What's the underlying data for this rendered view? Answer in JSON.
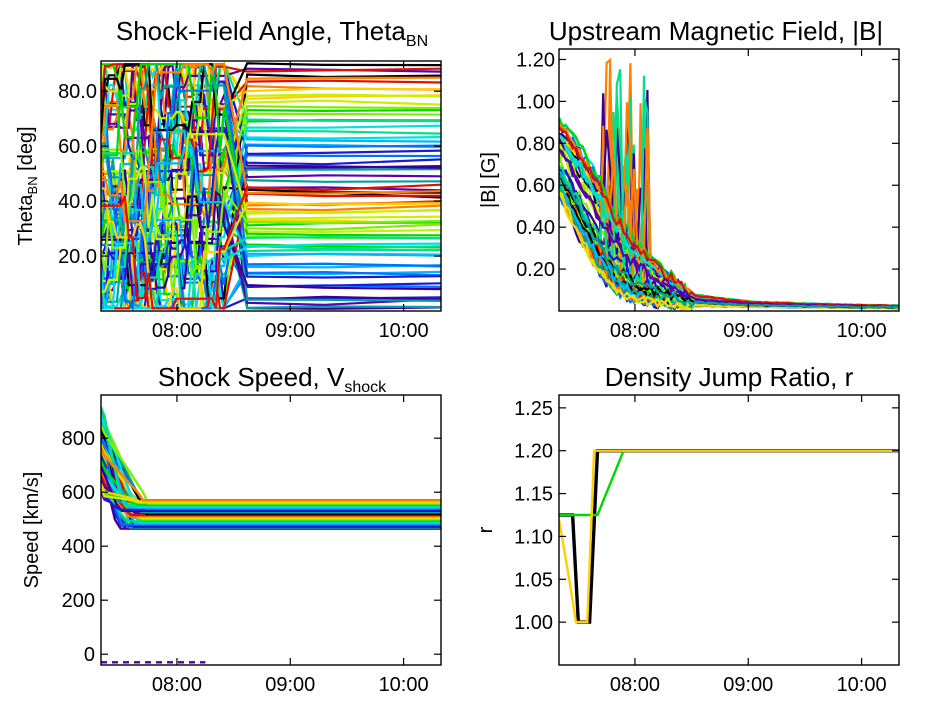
{
  "chart_data": [
    {
      "type": "line",
      "title_main": "Shock-Field Angle, Theta",
      "title_sub": "BN",
      "ylabel_main": "Theta",
      "ylabel_sub": "BN",
      "ylabel_rest": " [deg]",
      "xlim": [
        7.33,
        10.33
      ],
      "ylim": [
        0,
        91
      ],
      "xticks": [
        {
          "value": 8,
          "label": "08:00"
        },
        {
          "value": 9,
          "label": "09:00"
        },
        {
          "value": 10,
          "label": "10:00"
        }
      ],
      "yticks": [
        {
          "value": 20,
          "label": "20.0"
        },
        {
          "value": 40,
          "label": "40.0"
        },
        {
          "value": 60,
          "label": "60.0"
        },
        {
          "value": 80,
          "label": "80.0"
        }
      ],
      "description_of_traces": "ensemble of many colored field-line traces; noisy 0-90 deg before ~08:30, settling to nearly constant levels between ~1 and ~89 deg afterwards",
      "settled_levels_deg": [
        2,
        5,
        9,
        13,
        17,
        21,
        24,
        27,
        30,
        33,
        36,
        39,
        42,
        45,
        48,
        51,
        54,
        57,
        60,
        63,
        66,
        69,
        72,
        75,
        78,
        81,
        84,
        87,
        89
      ]
    },
    {
      "type": "line",
      "title": "Upstream Magnetic Field, |B|",
      "ylabel": "|B| [G]",
      "xlim": [
        7.33,
        10.33
      ],
      "ylim": [
        0.0,
        1.25
      ],
      "xticks": [
        {
          "value": 8,
          "label": "08:00"
        },
        {
          "value": 9,
          "label": "09:00"
        },
        {
          "value": 10,
          "label": "10:00"
        }
      ],
      "yticks": [
        {
          "value": 0.2,
          "label": "0.20"
        },
        {
          "value": 0.4,
          "label": "0.40"
        },
        {
          "value": 0.6,
          "label": "0.60"
        },
        {
          "value": 0.8,
          "label": "0.80"
        },
        {
          "value": 1.0,
          "label": "1.00"
        },
        {
          "value": 1.2,
          "label": "1.20"
        }
      ],
      "description_of_traces": "many colored traces decaying from ~0.9 G at 07:20 to ~0.02 G by 10:20, with spikes up to ~1.2 G near 07:50-08:05",
      "envelope": {
        "x": [
          7.33,
          7.5,
          7.67,
          7.83,
          8.0,
          8.25,
          8.5,
          9.0,
          9.5,
          10.0,
          10.33
        ],
        "upper": [
          0.92,
          0.8,
          0.65,
          0.48,
          0.34,
          0.2,
          0.08,
          0.045,
          0.035,
          0.028,
          0.025
        ],
        "lower": [
          0.55,
          0.35,
          0.18,
          0.08,
          0.04,
          0.03,
          0.025,
          0.02,
          0.018,
          0.016,
          0.015
        ]
      },
      "spike_max": 1.2
    },
    {
      "type": "line",
      "title_main": "Shock Speed, V",
      "title_sub": "shock",
      "ylabel": "Speed [km/s]",
      "xlim": [
        7.33,
        10.33
      ],
      "ylim": [
        -40,
        960
      ],
      "xticks": [
        {
          "value": 8,
          "label": "08:00"
        },
        {
          "value": 9,
          "label": "09:00"
        },
        {
          "value": 10,
          "label": "10:00"
        }
      ],
      "yticks": [
        {
          "value": 0,
          "label": "0"
        },
        {
          "value": 200,
          "label": "200"
        },
        {
          "value": 400,
          "label": "400"
        },
        {
          "value": 600,
          "label": "600"
        },
        {
          "value": 800,
          "label": "800"
        }
      ],
      "description_of_traces": "traces start 600-920 km/s at 07:20 and converge to a band of constant speeds between ~465 and ~570 km/s; a few traces near -30 km/s before 08:15",
      "band": [
        465,
        570
      ],
      "start_range": [
        600,
        920
      ],
      "outlier_level": -30,
      "outlier_until": 8.25
    },
    {
      "type": "line",
      "title": "Density Jump Ratio, r",
      "ylabel": "r",
      "xlim": [
        7.33,
        10.33
      ],
      "ylim": [
        0.95,
        1.265
      ],
      "xticks": [
        {
          "value": 8,
          "label": "08:00"
        },
        {
          "value": 9,
          "label": "09:00"
        },
        {
          "value": 10,
          "label": "10:00"
        }
      ],
      "yticks": [
        {
          "value": 1.0,
          "label": "1.00"
        },
        {
          "value": 1.05,
          "label": "1.05"
        },
        {
          "value": 1.1,
          "label": "1.10"
        },
        {
          "value": 1.15,
          "label": "1.15"
        },
        {
          "value": 1.2,
          "label": "1.20"
        },
        {
          "value": 1.25,
          "label": "1.25"
        }
      ],
      "series": [
        {
          "color": "#000000",
          "x": [
            7.33,
            7.45,
            7.5,
            7.6,
            7.67,
            10.33
          ],
          "y": [
            1.125,
            1.125,
            1.0,
            1.0,
            1.2,
            1.2
          ]
        },
        {
          "color": "#00d800",
          "x": [
            7.33,
            7.6,
            7.67,
            7.9,
            10.33
          ],
          "y": [
            1.125,
            1.125,
            1.125,
            1.2,
            1.2
          ]
        },
        {
          "color": "#ffd000",
          "x": [
            7.33,
            7.42,
            7.48,
            7.58,
            7.64,
            10.33
          ],
          "y": [
            1.12,
            1.05,
            1.0,
            1.0,
            1.2,
            1.2
          ]
        }
      ]
    }
  ]
}
